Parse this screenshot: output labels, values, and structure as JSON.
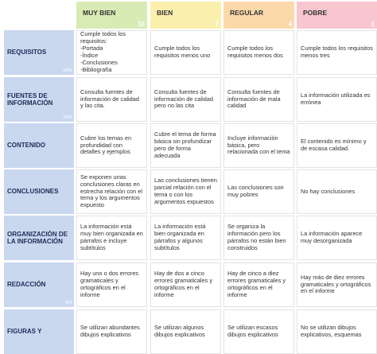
{
  "header": {
    "levels": [
      {
        "label": "MUY BIEN",
        "score": "10"
      },
      {
        "label": "BIEN",
        "score": "7"
      },
      {
        "label": "REGULAR",
        "score": "4"
      },
      {
        "label": "POBRE",
        "score": "1"
      }
    ]
  },
  "rows": [
    {
      "criterion": "REQUISITOS",
      "weight": "10%",
      "cells": [
        "Cumple todos los requisitos:\n-Portada\n-Índice\n-Conclusiones\n-Bibliografía",
        "Cumple todos los requisitos menos uno",
        "Cumple todos los requisitos menos dos",
        "Cumple todos los requisitos menos tres"
      ]
    },
    {
      "criterion": "FUENTES DE INFORMACIÓN",
      "weight": "10%",
      "cells": [
        "Consulta fuentes de información de calidad y las cita.",
        "Consulta fuentes de información de calidad pero no las cita",
        "Consulta fuentes de información de mala calidad",
        "La información utilizada es errónea"
      ]
    },
    {
      "criterion": "CONTENIDO",
      "cells": [
        "Cubre los temas en profundidad con detalles y ejemplos",
        "Cubre el tema de forma básica sin profundizar pero de forma adecuada",
        "Incluye información básica, pero relacionada con el tema",
        "El contenido es mínimo y de escasa calidad."
      ]
    },
    {
      "criterion": "CONCLUSIONES",
      "cells": [
        "Se exponen unas conclusiones claras en estrecha relación con el tema y los argumentos expuesto",
        "Las conclusiones tienen parcial relación con el tema o con los argumentos expuestos",
        "Las conclusiones son muy pobres",
        "No hay conclusiones"
      ]
    },
    {
      "criterion": "ORGANIZACIÓN DE LA INFORMACIÓN",
      "cells": [
        "La información está muy bien organizada en párrafos e incluye subtítulos",
        "La información está bien organizada en párrafos y algunos subtítulos",
        "Se organiza la información pero los párrafos no están bien construidos",
        "La información aparece muy desorganizada"
      ]
    },
    {
      "criterion": "REDACCIÓN",
      "weight": "5%",
      "cells": [
        "Hay uno o dos errores gramaticales y ortográficos en el informe",
        "Hay de dos a cinco errores gramaticales y ortográficos en el informe",
        "Hay de cinco a diez errores gramaticales y ortográficos en el informe",
        "Hay más de diez errores gramaticales y ortográficos en el informe"
      ]
    },
    {
      "criterion": "FIGURAS Y",
      "cells": [
        "Se utilizan abundantes dibujos explicativos",
        "Se utilizan algunos dibujos explicativos",
        "Se utilizan escasos dibujos explicativos",
        "No se utilizan dibujos explicativos, esquemas"
      ]
    }
  ]
}
